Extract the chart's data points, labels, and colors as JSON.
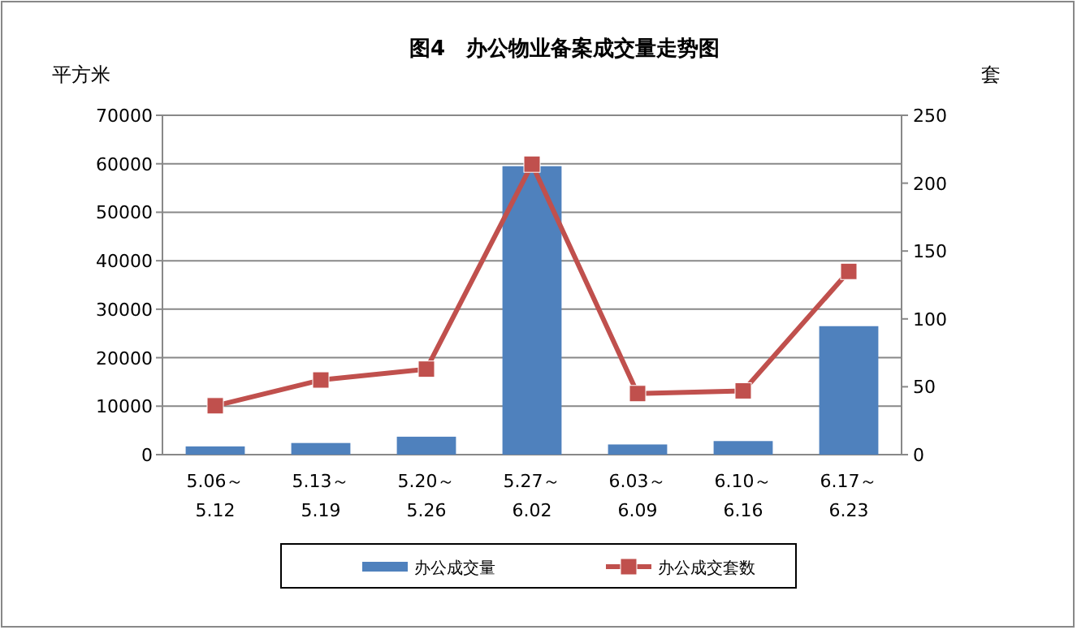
{
  "chart_data": {
    "type": "bar",
    "title": "图4　办公物业备案成交量走势图",
    "ylabel": "平方米",
    "y2label": "套",
    "categories": [
      "5.06～5.12",
      "5.13～5.19",
      "5.20～5.26",
      "5.27～6.02",
      "6.03～6.09",
      "6.10～6.16",
      "6.17～6.23"
    ],
    "series": [
      {
        "name": "办公成交量",
        "color": "#4f81bd",
        "values": [
          1700,
          2400,
          3700,
          59500,
          2100,
          2800,
          26500
        ]
      },
      {
        "name": "办公成交套数",
        "type": "line",
        "axis": "y2",
        "color": "#c0504d",
        "marker": "square",
        "values": [
          36,
          55,
          63,
          214,
          45,
          47,
          135
        ]
      }
    ],
    "ylim": [
      0,
      70000
    ],
    "yticks": [
      0,
      10000,
      20000,
      30000,
      40000,
      50000,
      60000,
      70000
    ],
    "y2lim": [
      0,
      250
    ],
    "y2ticks": [
      0,
      50,
      100,
      150,
      200,
      250
    ],
    "grid": "y",
    "legend": "bottom"
  }
}
